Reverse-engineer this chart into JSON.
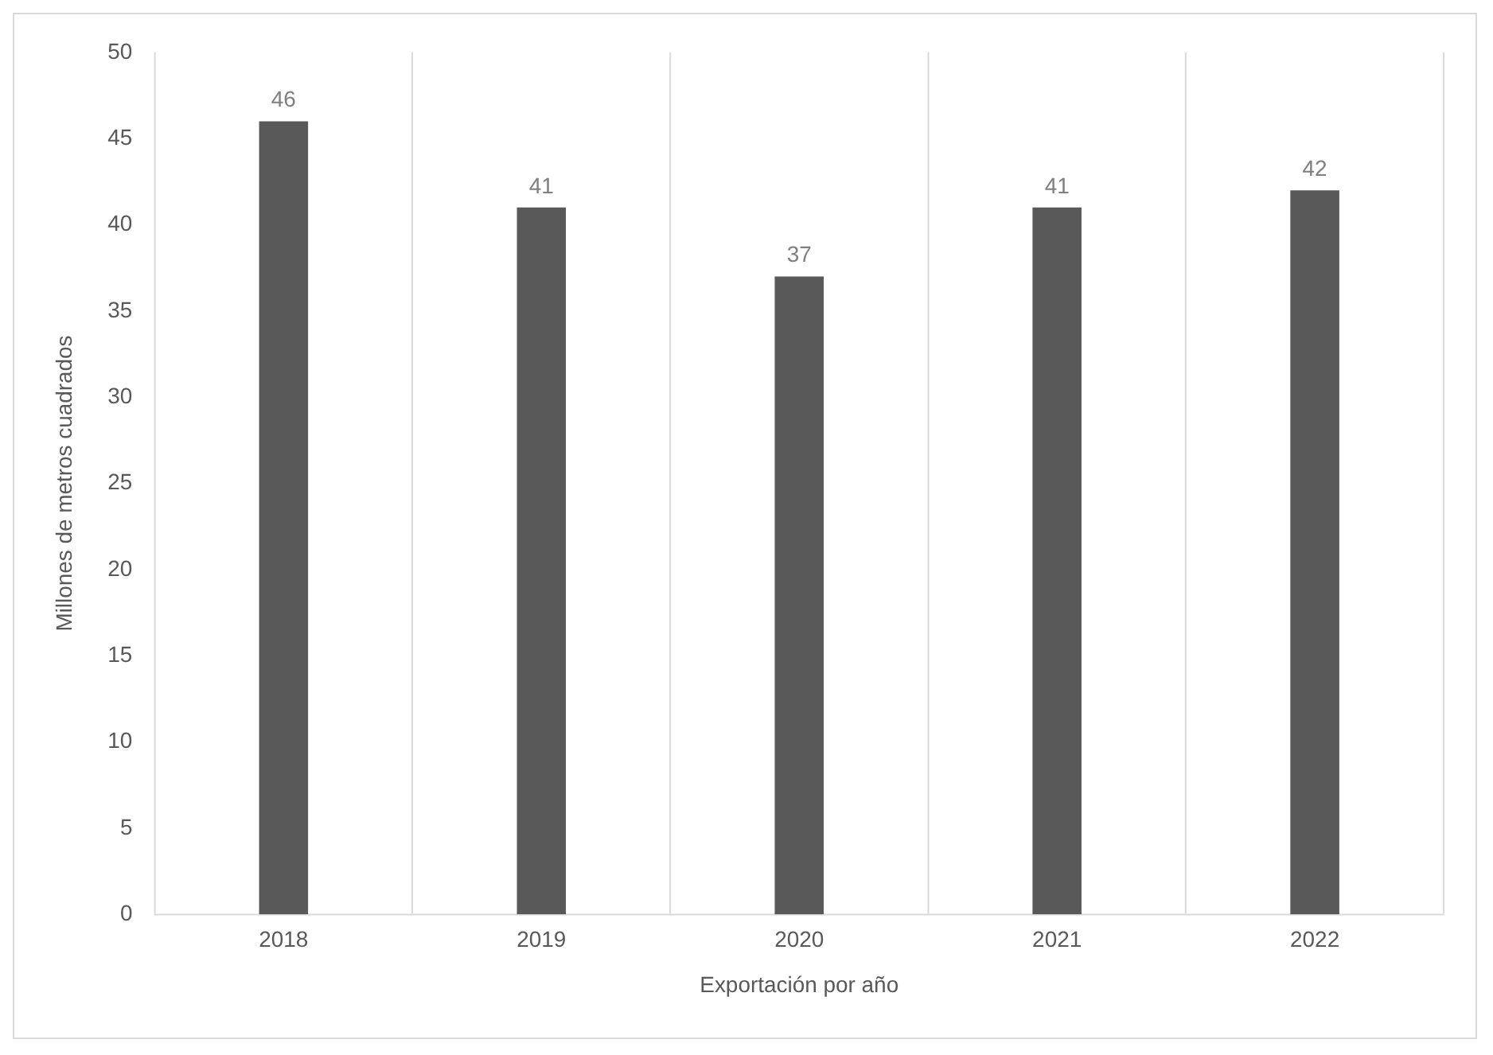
{
  "chart_data": {
    "type": "bar",
    "xlabel": "Exportación por año",
    "ylabel": "Millones de metros cuadrados",
    "categories": [
      "2018",
      "2019",
      "2020",
      "2021",
      "2022"
    ],
    "values": [
      46,
      41,
      37,
      41,
      42
    ],
    "color": "#595959",
    "ylim": [
      0,
      50
    ],
    "yticks": [
      0,
      5,
      10,
      15,
      20,
      25,
      30,
      35,
      40,
      45,
      50
    ],
    "grid": "x",
    "legend": false,
    "data_labels": true
  }
}
